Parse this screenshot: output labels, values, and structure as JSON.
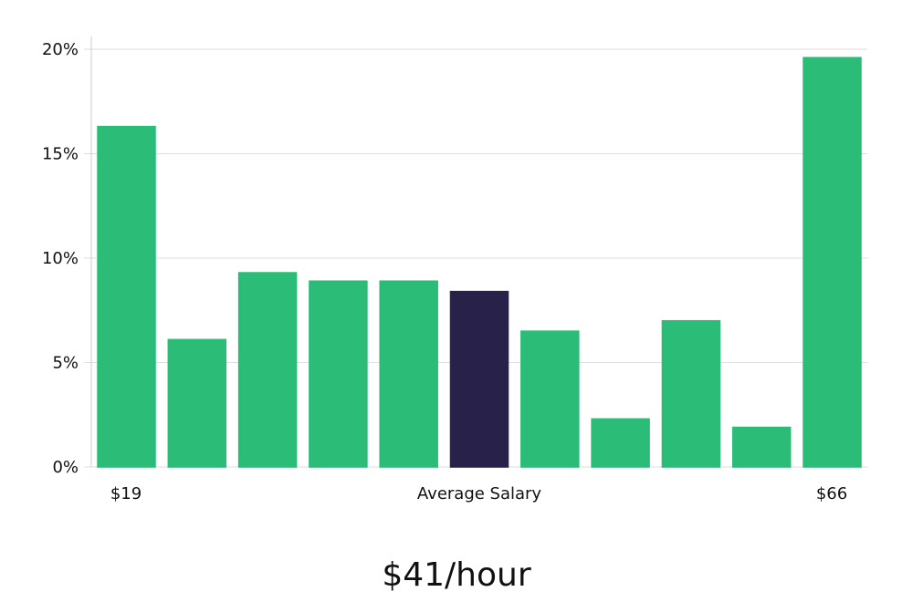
{
  "colors": {
    "bar": "#2bbd77",
    "highlight": "#28224a",
    "grid": "#dedede",
    "axis": "#cccccc"
  },
  "chart_data": {
    "type": "bar",
    "title": "",
    "xlabel": "",
    "ylabel": "",
    "ylim": [
      0,
      20
    ],
    "yticks": [
      {
        "value": 0,
        "label": "0%"
      },
      {
        "value": 5,
        "label": "5%"
      },
      {
        "value": 10,
        "label": "10%"
      },
      {
        "value": 15,
        "label": "15%"
      },
      {
        "value": 20,
        "label": "20%"
      }
    ],
    "values": [
      16.3,
      6.1,
      9.3,
      8.9,
      8.9,
      8.4,
      6.5,
      2.3,
      7.0,
      1.9,
      19.6
    ],
    "highlight_index": 5,
    "x_labels": {
      "min": "$19",
      "average": "Average Salary",
      "max": "$66"
    },
    "grid": true
  },
  "summary": {
    "average_value": "$41/hour"
  }
}
